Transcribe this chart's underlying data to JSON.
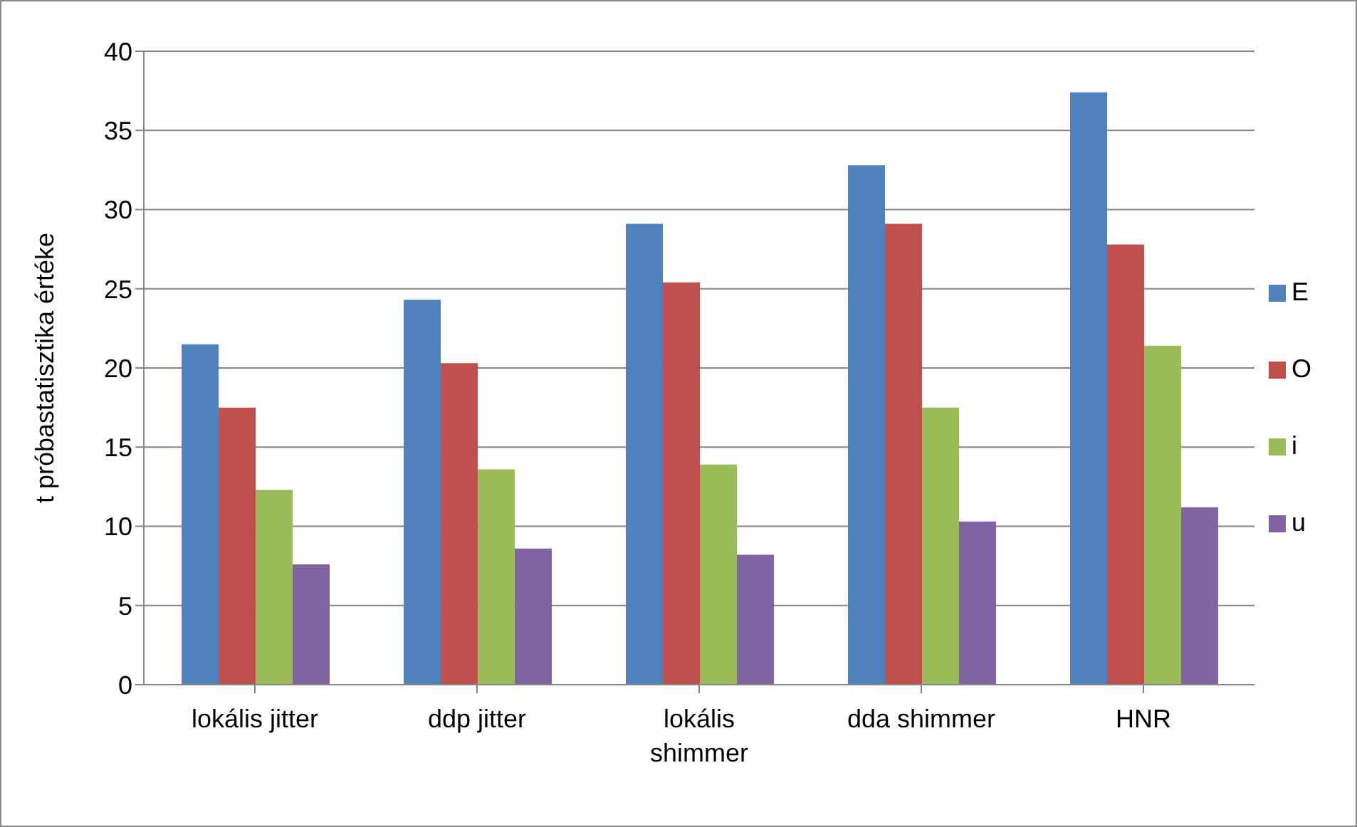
{
  "chart_data": {
    "type": "bar",
    "ylabel": "t próbastatisztika értéke",
    "categories": [
      "lokális jitter",
      "ddp jitter",
      "lokális shimmer",
      "dda shimmer",
      "HNR"
    ],
    "series": [
      {
        "name": "E",
        "color": "#4f81bd",
        "values": [
          21.5,
          24.3,
          29.1,
          32.8,
          37.4
        ]
      },
      {
        "name": "O",
        "color": "#c0504d",
        "values": [
          17.5,
          20.3,
          25.4,
          29.1,
          27.8
        ]
      },
      {
        "name": "i",
        "color": "#9bbb59",
        "values": [
          12.3,
          13.6,
          13.9,
          17.5,
          21.4
        ]
      },
      {
        "name": "u",
        "color": "#8064a2",
        "values": [
          7.6,
          8.6,
          8.2,
          10.3,
          11.2
        ]
      }
    ],
    "ylim": [
      0,
      40
    ],
    "yticks": [
      0,
      5,
      10,
      15,
      20,
      25,
      30,
      35,
      40
    ],
    "grid": "y",
    "legend": "right"
  }
}
